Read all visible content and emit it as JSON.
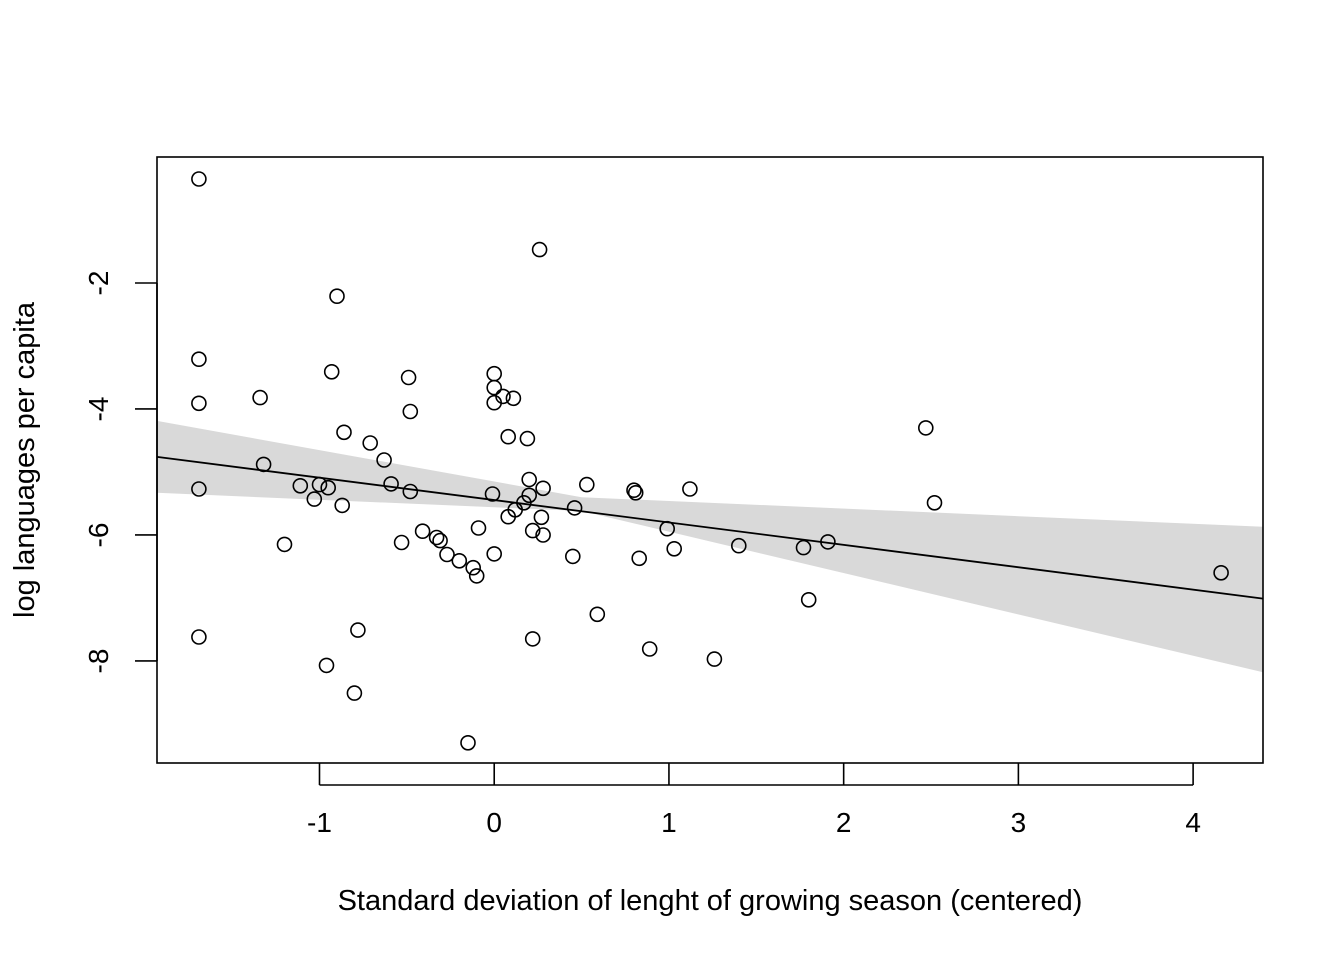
{
  "chart_data": {
    "type": "scatter",
    "title": "",
    "xlabel": "Standard deviation of lenght of growing season (centered)",
    "ylabel": "log languages per capita",
    "xlim": [
      -1.93,
      4.4
    ],
    "ylim": [
      -9.62,
      0.0
    ],
    "x_ticks": [
      -1,
      0,
      1,
      2,
      3,
      4
    ],
    "y_ticks": [
      -2,
      -4,
      -6,
      -8
    ],
    "x_tick_labels": [
      "-1",
      "0",
      "1",
      "2",
      "3",
      "4"
    ],
    "y_tick_labels": [
      "-2",
      "-4",
      "-6",
      "-8"
    ],
    "grid": false,
    "legend": "none",
    "points": [
      [
        -1.69,
        -0.35
      ],
      [
        -1.69,
        -3.21
      ],
      [
        -1.69,
        -3.91
      ],
      [
        -1.69,
        -5.27
      ],
      [
        -1.69,
        -7.62
      ],
      [
        -1.34,
        -3.82
      ],
      [
        -1.32,
        -4.88
      ],
      [
        -1.2,
        -6.15
      ],
      [
        -1.11,
        -5.22
      ],
      [
        -1.03,
        -5.43
      ],
      [
        -1.0,
        -5.2
      ],
      [
        -0.96,
        -8.07
      ],
      [
        -0.95,
        -5.25
      ],
      [
        -0.93,
        -3.41
      ],
      [
        -0.9,
        -2.21
      ],
      [
        -0.87,
        -5.53
      ],
      [
        -0.86,
        -4.37
      ],
      [
        -0.8,
        -8.51
      ],
      [
        -0.78,
        -7.51
      ],
      [
        -0.71,
        -4.54
      ],
      [
        -0.63,
        -4.81
      ],
      [
        -0.59,
        -5.19
      ],
      [
        -0.53,
        -6.12
      ],
      [
        -0.49,
        -3.5
      ],
      [
        -0.48,
        -4.04
      ],
      [
        -0.48,
        -5.31
      ],
      [
        -0.41,
        -5.94
      ],
      [
        -0.33,
        -6.04
      ],
      [
        -0.31,
        -6.09
      ],
      [
        -0.27,
        -6.31
      ],
      [
        -0.2,
        -6.41
      ],
      [
        -0.15,
        -9.3
      ],
      [
        -0.12,
        -6.52
      ],
      [
        -0.1,
        -6.65
      ],
      [
        -0.09,
        -5.89
      ],
      [
        -0.01,
        -5.35
      ],
      [
        0.0,
        -3.44
      ],
      [
        0.0,
        -3.66
      ],
      [
        0.0,
        -3.9
      ],
      [
        0.0,
        -6.3
      ],
      [
        0.05,
        -3.8
      ],
      [
        0.08,
        -4.44
      ],
      [
        0.08,
        -5.71
      ],
      [
        0.11,
        -3.83
      ],
      [
        0.12,
        -5.6
      ],
      [
        0.17,
        -5.49
      ],
      [
        0.19,
        -4.47
      ],
      [
        0.2,
        -5.12
      ],
      [
        0.2,
        -5.37
      ],
      [
        0.22,
        -5.93
      ],
      [
        0.22,
        -7.65
      ],
      [
        0.26,
        -1.47
      ],
      [
        0.27,
        -5.72
      ],
      [
        0.28,
        -5.26
      ],
      [
        0.28,
        -6.0
      ],
      [
        0.45,
        -6.34
      ],
      [
        0.46,
        -5.57
      ],
      [
        0.53,
        -5.2
      ],
      [
        0.59,
        -7.26
      ],
      [
        0.8,
        -5.29
      ],
      [
        0.81,
        -5.33
      ],
      [
        0.83,
        -6.37
      ],
      [
        0.89,
        -7.81
      ],
      [
        0.99,
        -5.9
      ],
      [
        1.03,
        -6.22
      ],
      [
        1.12,
        -5.27
      ],
      [
        1.26,
        -7.97
      ],
      [
        1.4,
        -6.17
      ],
      [
        1.77,
        -6.2
      ],
      [
        1.8,
        -7.03
      ],
      [
        1.91,
        -6.11
      ],
      [
        2.47,
        -4.3
      ],
      [
        2.52,
        -5.49
      ],
      [
        4.16,
        -6.6
      ]
    ],
    "fit_line": {
      "x": [
        -1.93,
        4.4
      ],
      "y": [
        -4.76,
        -7.01
      ]
    },
    "confidence_band": {
      "x": [
        -1.93,
        0.5,
        4.4
      ],
      "upper": [
        -4.19,
        -5.4,
        -5.87
      ],
      "lower": [
        -5.33,
        -5.62,
        -8.18
      ]
    }
  }
}
